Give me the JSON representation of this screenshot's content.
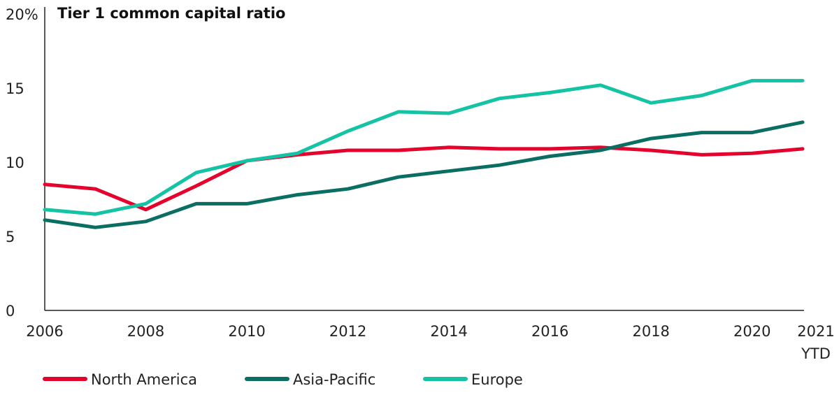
{
  "chart_data": {
    "type": "line",
    "title": "Tier 1 common capital ratio",
    "x": [
      "2006",
      "2007",
      "2008",
      "2009",
      "2010",
      "2011",
      "2012",
      "2013",
      "2014",
      "2015",
      "2016",
      "2017",
      "2018",
      "2019",
      "2020",
      "2021 YTD"
    ],
    "x_tick_labels": [
      "2006",
      "2008",
      "2010",
      "2012",
      "2014",
      "2016",
      "2018",
      "2020",
      "2021",
      "YTD"
    ],
    "ylim": [
      0,
      20
    ],
    "y_ticks": [
      0,
      5,
      10,
      15,
      20
    ],
    "y_tick_labels": [
      "0",
      "5",
      "10",
      "15",
      "20%"
    ],
    "grid": false,
    "legend_position": "bottom",
    "series": [
      {
        "name": "North America",
        "color": "#e4032c",
        "values": [
          8.5,
          8.2,
          6.8,
          8.4,
          10.1,
          10.5,
          10.8,
          10.8,
          11.0,
          10.9,
          10.9,
          11.0,
          10.8,
          10.5,
          10.6,
          10.9
        ]
      },
      {
        "name": "Asia-Pacific",
        "color": "#0a6e63",
        "values": [
          6.1,
          5.6,
          6.0,
          7.2,
          7.2,
          7.8,
          8.2,
          9.0,
          9.4,
          9.8,
          10.4,
          10.8,
          11.6,
          12.0,
          12.0,
          12.7
        ]
      },
      {
        "name": "Europe",
        "color": "#14c3a4",
        "values": [
          6.8,
          6.5,
          7.2,
          9.3,
          10.1,
          10.6,
          12.1,
          13.4,
          13.3,
          14.3,
          14.7,
          15.2,
          14.0,
          14.5,
          15.5,
          15.5
        ]
      }
    ]
  }
}
